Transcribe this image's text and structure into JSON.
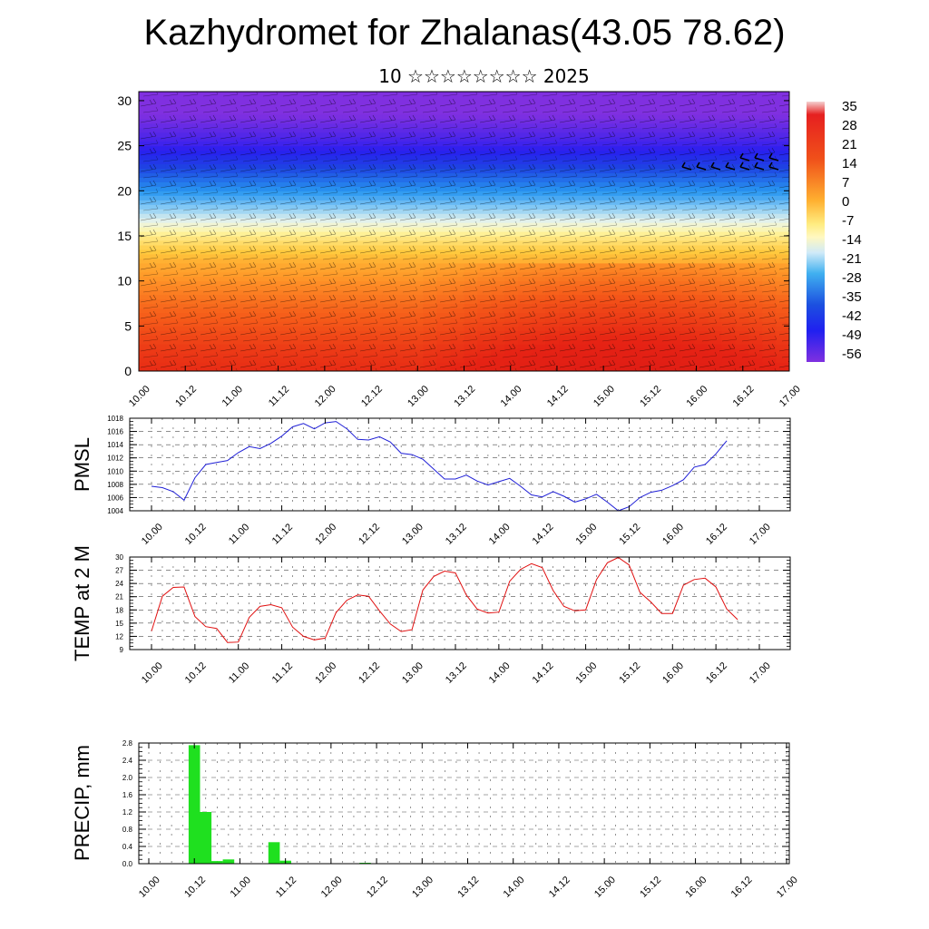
{
  "title": "Kazhydromet for Zhalanas(43.05 78.62)",
  "subtitle": "10 ☆☆☆☆☆☆☆☆ 2025",
  "time_labels": [
    "10.00",
    "10.12",
    "11.00",
    "11.12",
    "12.00",
    "12.12",
    "13.00",
    "13.12",
    "14.00",
    "14.12",
    "15.00",
    "15.12",
    "16.00",
    "16.12",
    "17.00"
  ],
  "colors": {
    "pmsl": "#1f1fd6",
    "temp": "#e01010",
    "precip": "#1fe01f",
    "text": "#000000"
  },
  "chart_data": [
    {
      "type": "heatmap",
      "name_hint": "vertical temperature cross-section with wind barbs",
      "x_range": [
        "10.00",
        "17.00"
      ],
      "ylim": [
        0,
        31
      ],
      "yticks": [
        0,
        5,
        10,
        15,
        20,
        25,
        30
      ],
      "colorbar": {
        "labels": [
          "35",
          "28",
          "21",
          "14",
          "7",
          "0",
          "-7",
          "-14",
          "-21",
          "-28",
          "-35",
          "-42",
          "-49",
          "-56"
        ],
        "min": -60,
        "max": 38
      },
      "bands": [
        {
          "level_from": 0,
          "level_to": 5,
          "temp": 18
        },
        {
          "level_from": 5,
          "level_to": 10,
          "temp": 12
        },
        {
          "level_from": 10,
          "level_to": 14,
          "temp": 4
        },
        {
          "level_from": 14,
          "level_to": 16,
          "temp": -6
        },
        {
          "level_from": 16,
          "level_to": 18,
          "temp": -16
        },
        {
          "level_from": 18,
          "level_to": 21,
          "temp": -30
        },
        {
          "level_from": 21,
          "level_to": 24,
          "temp": -42
        },
        {
          "level_from": 24,
          "level_to": 26,
          "temp": -52
        },
        {
          "level_from": 26,
          "level_to": 31,
          "temp": -60
        }
      ]
    },
    {
      "type": "line",
      "ylabel": "PMSL",
      "ylim": [
        1004,
        1018
      ],
      "yticks": [
        1004,
        1006,
        1008,
        1010,
        1012,
        1014,
        1016,
        1018
      ],
      "x_range": [
        0,
        7
      ],
      "x": [
        0,
        0.125,
        0.25,
        0.375,
        0.5,
        0.625,
        0.75,
        0.875,
        1,
        1.125,
        1.25,
        1.375,
        1.5,
        1.625,
        1.75,
        1.875,
        2,
        2.125,
        2.25,
        2.375,
        2.5,
        2.625,
        2.75,
        2.875,
        3,
        3.125,
        3.25,
        3.375,
        3.5,
        3.625,
        3.75,
        3.875,
        4,
        4.125,
        4.25,
        4.375,
        4.5,
        4.625,
        4.75,
        4.875,
        5,
        5.125,
        5.25,
        5.375,
        5.5,
        5.625,
        5.75,
        5.875,
        6,
        6.125,
        6.25,
        6.375,
        6.5,
        6.625
      ],
      "values": [
        1007.7,
        1007.5,
        1006.9,
        1005.6,
        1009.0,
        1011.0,
        1011.3,
        1011.6,
        1012.8,
        1013.7,
        1013.4,
        1014.2,
        1015.3,
        1016.7,
        1017.2,
        1016.4,
        1017.3,
        1017.5,
        1016.4,
        1014.8,
        1014.7,
        1015.2,
        1014.4,
        1012.7,
        1012.5,
        1011.8,
        1010.3,
        1008.8,
        1008.8,
        1009.4,
        1008.5,
        1007.9,
        1008.4,
        1008.9,
        1007.7,
        1006.4,
        1006.1,
        1006.9,
        1006.2,
        1005.3,
        1005.8,
        1006.5,
        1005.3,
        1004.0,
        1004.6,
        1006.0,
        1006.8,
        1007.1,
        1007.8,
        1008.7,
        1010.6,
        1011.0,
        1012.6,
        1014.6
      ]
    },
    {
      "type": "line",
      "ylabel": "TEMP at 2 M",
      "ylim": [
        9,
        30
      ],
      "yticks": [
        9,
        12,
        15,
        18,
        21,
        24,
        27,
        30
      ],
      "x_range": [
        0,
        7
      ],
      "x": [
        0,
        0.125,
        0.25,
        0.375,
        0.5,
        0.625,
        0.75,
        0.875,
        1,
        1.125,
        1.25,
        1.375,
        1.5,
        1.625,
        1.75,
        1.875,
        2,
        2.125,
        2.25,
        2.375,
        2.5,
        2.625,
        2.75,
        2.875,
        3,
        3.125,
        3.25,
        3.375,
        3.5,
        3.625,
        3.75,
        3.875,
        4,
        4.125,
        4.25,
        4.375,
        4.5,
        4.625,
        4.75,
        4.875,
        5,
        5.125,
        5.25,
        5.375,
        5.5,
        5.625,
        5.75,
        5.875,
        6,
        6.125,
        6.25,
        6.375,
        6.5,
        6.625,
        6.75
      ],
      "values": [
        13.2,
        21.1,
        23.1,
        23.2,
        16.5,
        14.2,
        13.8,
        10.6,
        10.7,
        16.3,
        18.8,
        19.2,
        18.5,
        14.1,
        12.0,
        11.2,
        11.6,
        17.4,
        20.2,
        21.4,
        21.1,
        17.8,
        14.8,
        13.1,
        13.5,
        22.5,
        25.6,
        26.8,
        26.4,
        21.4,
        18.2,
        17.3,
        17.5,
        24.5,
        27.2,
        28.5,
        27.6,
        22.4,
        18.8,
        17.8,
        18.0,
        24.9,
        28.7,
        29.9,
        28.2,
        22.0,
        19.8,
        17.2,
        17.2,
        23.6,
        24.9,
        25.2,
        23.2,
        18.2,
        15.8
      ]
    },
    {
      "type": "bar",
      "ylabel": "PRECIP, mm",
      "ylim": [
        0,
        2.8
      ],
      "yticks": [
        0,
        0.4,
        0.8,
        1.2,
        1.6,
        2.0,
        2.4,
        2.8
      ],
      "yticklabels": [
        "0.0",
        "0.4",
        "0.8",
        "1.2",
        "1.6",
        "2.0",
        "2.4",
        "2.8"
      ],
      "x_range": [
        0,
        7
      ],
      "x": [
        0.5,
        0.625,
        0.75,
        0.875,
        1.375,
        1.5,
        2.375
      ],
      "values": [
        2.75,
        1.2,
        0.06,
        0.1,
        0.5,
        0.07,
        0.02
      ]
    }
  ]
}
